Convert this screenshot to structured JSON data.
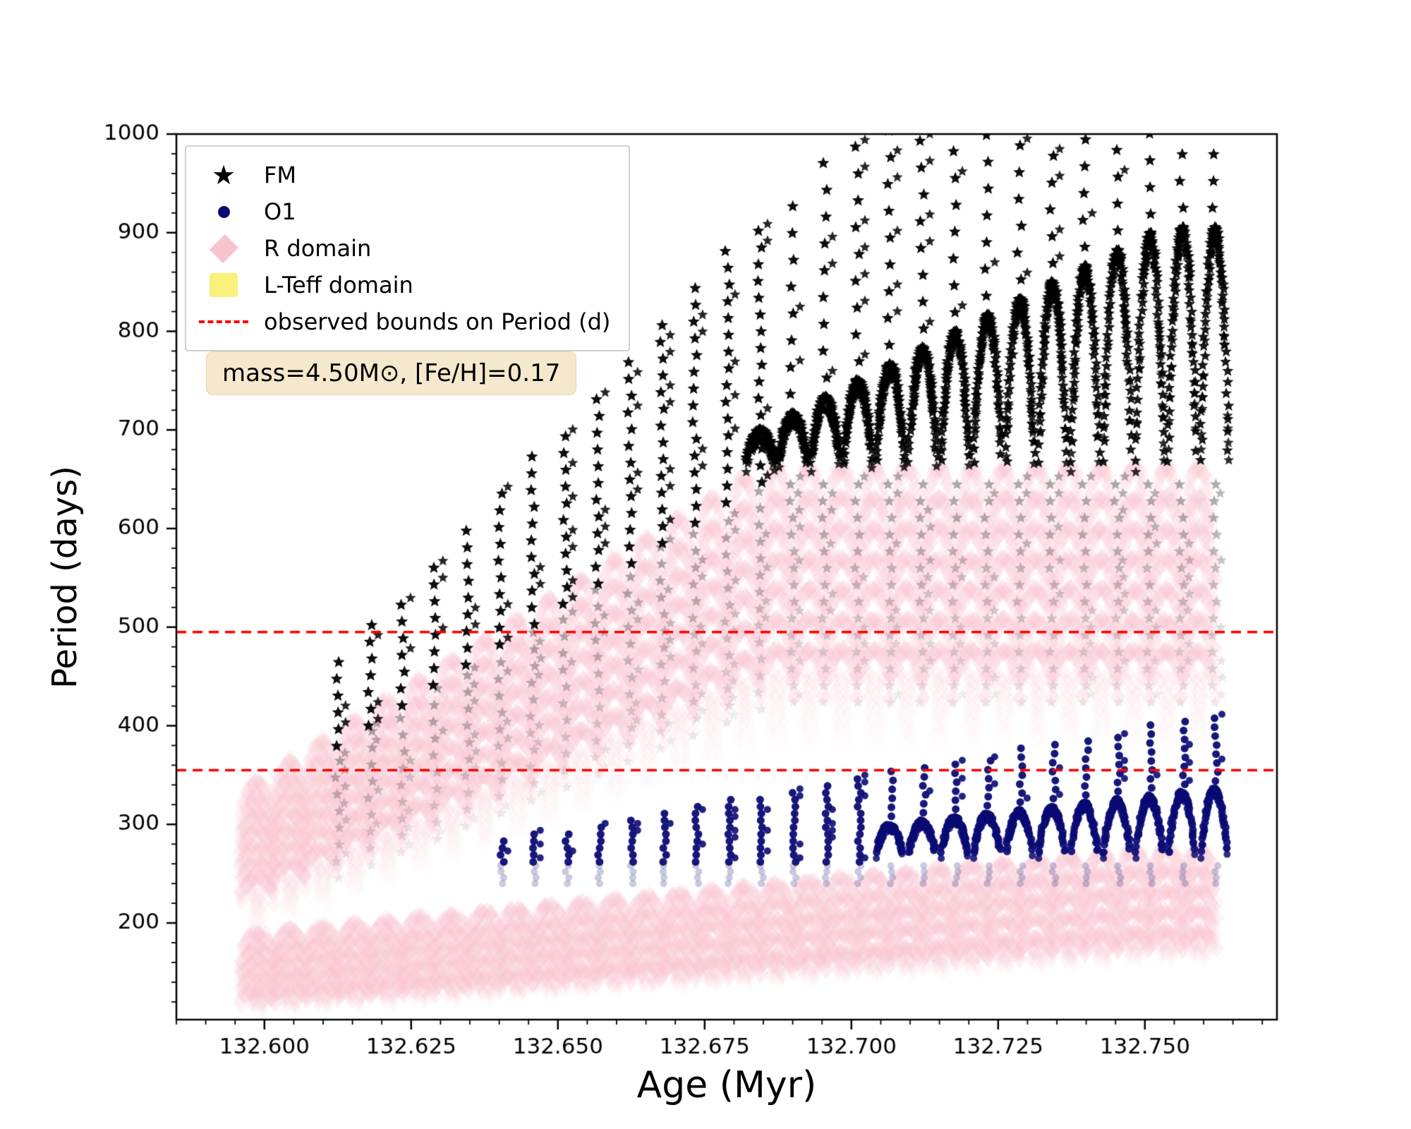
{
  "legend": {
    "items": [
      {
        "label": "FM",
        "marker": "star",
        "color": "#000000"
      },
      {
        "label": "O1",
        "marker": "circle",
        "color": "#0b0b74"
      },
      {
        "label": "R domain",
        "marker": "diamond",
        "color": "#f7c3cd"
      },
      {
        "label": "L-Teff domain",
        "marker": "square",
        "color": "#f8f17c"
      },
      {
        "label": "observed bounds on Period (d)",
        "marker": "dashed-line",
        "color": "#ff0000"
      }
    ]
  },
  "annotation": {
    "text": "mass=4.50M⊙, [Fe/H]=0.17",
    "bg": "#f6e8cc"
  },
  "chart_data": {
    "type": "scatter",
    "title": "",
    "xlabel": "Age (Myr)",
    "ylabel": "Period (days)",
    "xlim": [
      132.585,
      132.7725
    ],
    "ylim": [
      102,
      1000
    ],
    "x_ticks": [
      132.6,
      132.625,
      132.65,
      132.675,
      132.7,
      132.725,
      132.75
    ],
    "x_tick_labels": [
      "132.600",
      "132.625",
      "132.650",
      "132.675",
      "132.700",
      "132.725",
      "132.750"
    ],
    "y_ticks": [
      200,
      300,
      400,
      500,
      600,
      700,
      800,
      900,
      1000
    ],
    "y_tick_labels": [
      "200",
      "300",
      "400",
      "500",
      "600",
      "700",
      "800",
      "900",
      "1000"
    ],
    "x_minor_step": 0.005,
    "y_minor_step": 20,
    "grid": false,
    "legend_position": "upper left",
    "hlines": {
      "values": [
        495,
        355
      ],
      "color": "#ff0000",
      "style": "dashed",
      "label": "observed bounds on Period (d)"
    },
    "series": [
      {
        "name": "FM",
        "marker": "star",
        "color": "#000000",
        "columns": {
          "age_start": 132.6125,
          "age_end": 132.762,
          "spacing": 0.00553,
          "top_start": 470,
          "top_slope": 6200,
          "top_max": 1008,
          "dy": 17
        },
        "arcs": {
          "age_start": 132.6845,
          "age_end": 132.762,
          "spacing": 0.00553,
          "width": 0.0048,
          "base": 668,
          "peak_start": 700,
          "peak_slope": 3000,
          "peak_max": 905
        }
      },
      {
        "name": "O1",
        "marker": "circle",
        "color": "#0b0b74",
        "columns": {
          "age_start": 132.6405,
          "age_end": 132.762,
          "spacing": 0.00553,
          "top_start": 285,
          "top_slope": 1050,
          "top_max": 412,
          "bottom": 262,
          "dy": 7
        },
        "arcs": {
          "age_start": 132.7065,
          "age_end": 132.762,
          "spacing": 0.00553,
          "width": 0.0045,
          "base": 272,
          "peak_start": 300,
          "peak_slope": 650,
          "peak_max": 336
        }
      },
      {
        "name": "R domain",
        "marker": "diamond",
        "color": "#f7c3cd",
        "bands": [
          {
            "id": "upper",
            "age_start": 132.596,
            "age_end": 132.762,
            "arc_width": 0.00553,
            "top_start": 322,
            "top_slope": 3720,
            "top_max": 662,
            "rel_bottom": 0.72,
            "drip_drop": 0.14,
            "rows": 7
          },
          {
            "id": "lower",
            "age_start": 132.596,
            "age_end": 132.762,
            "arc_width": 0.00553,
            "top_start": 186,
            "top_slope": 560,
            "top_max": 274,
            "rel_bottom": 0.7,
            "drip_drop": 0.1,
            "rows": 5
          }
        ]
      },
      {
        "name": "L-Teff domain",
        "marker": "square",
        "color": "#f8f17c"
      }
    ],
    "annotation": "mass=4.50M⊙, [Fe/H]=0.17"
  }
}
